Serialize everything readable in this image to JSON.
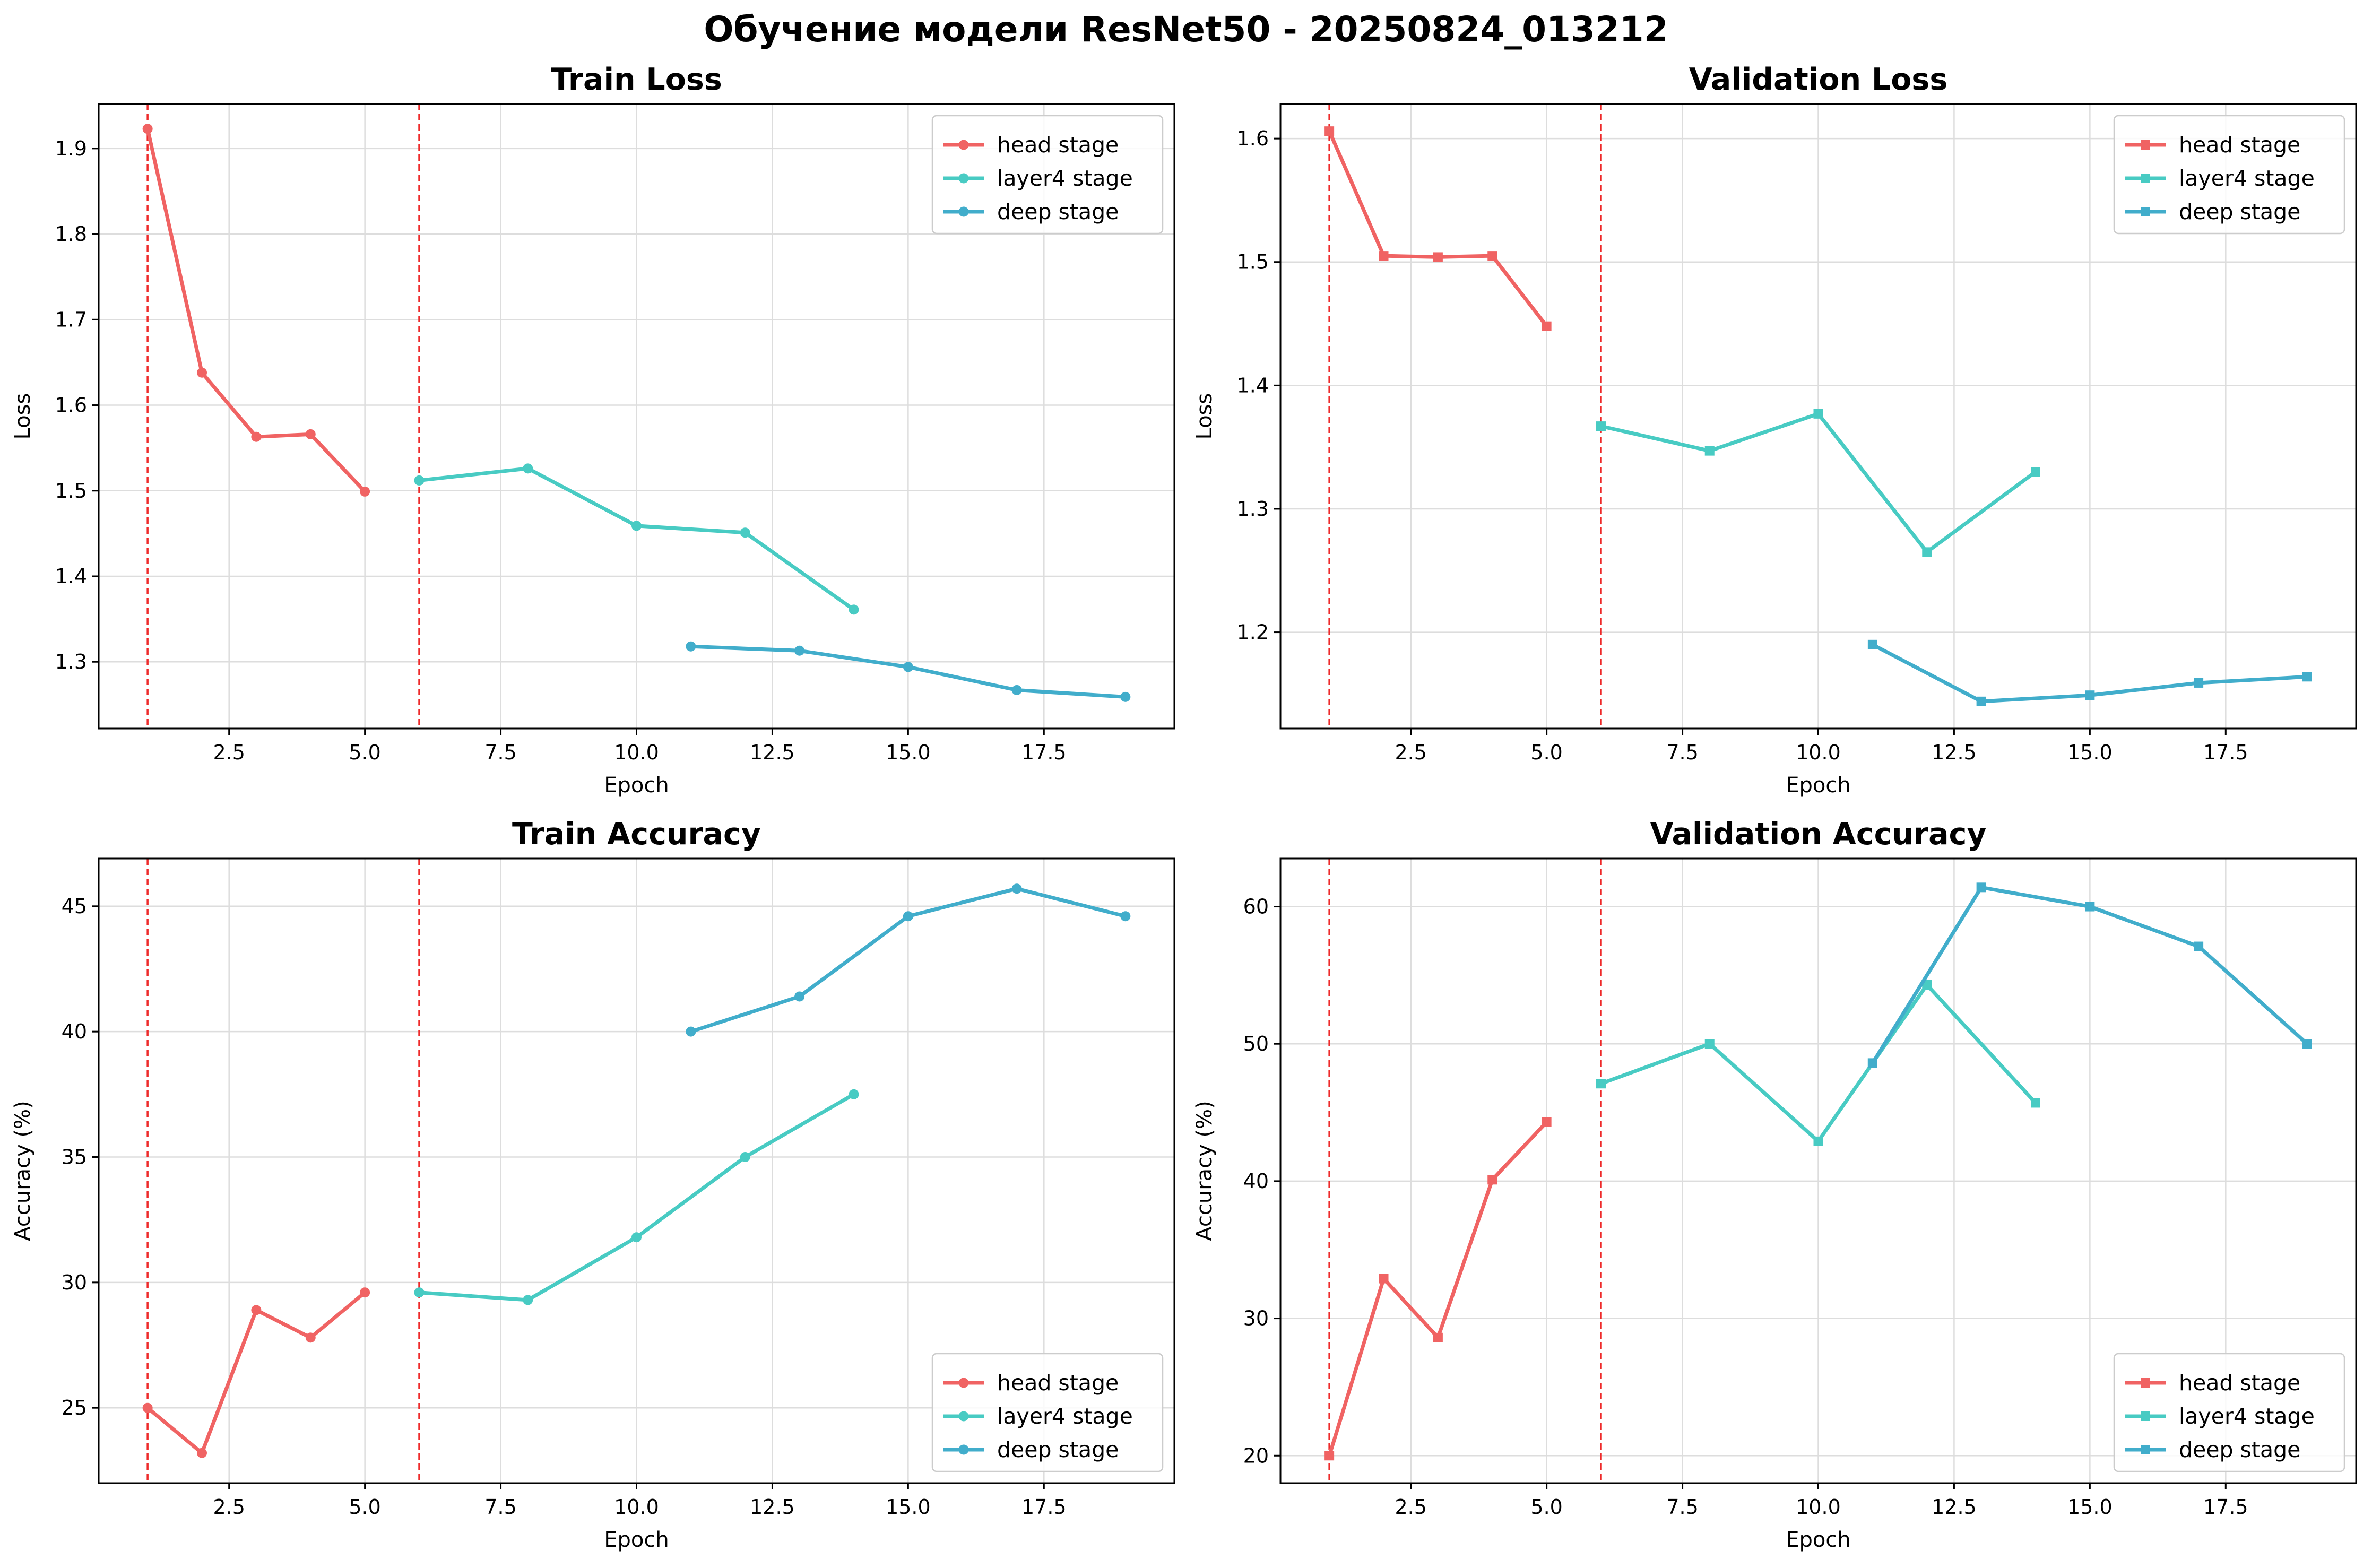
{
  "figure_title": "Обучение модели ResNet50 - 20250824_013212",
  "colors": {
    "head": "#f06363",
    "layer4": "#48cbc3",
    "deep": "#41adcb",
    "stage_line": "#ee2a2a"
  },
  "chart_data": [
    {
      "type": "line",
      "title": "Train Loss",
      "xlabel": "Epoch",
      "ylabel": "Loss",
      "xlim": [
        0.1,
        19.9
      ],
      "ylim": [
        1.222,
        1.952
      ],
      "xticks": [
        2.5,
        5.0,
        7.5,
        10.0,
        12.5,
        15.0,
        17.5
      ],
      "xtick_labels": [
        "2.5",
        "5.0",
        "7.5",
        "10.0",
        "12.5",
        "15.0",
        "17.5"
      ],
      "yticks": [
        1.3,
        1.4,
        1.5,
        1.6,
        1.7,
        1.8,
        1.9
      ],
      "ytick_labels": [
        "1.3",
        "1.4",
        "1.5",
        "1.6",
        "1.7",
        "1.8",
        "1.9"
      ],
      "marker": "circle",
      "legend_position": "upper right",
      "stage_boundaries": [
        1,
        6
      ],
      "grid": true,
      "series": [
        {
          "name": "head stage",
          "color_key": "head",
          "x": [
            1,
            2,
            3,
            4,
            5
          ],
          "y": [
            1.923,
            1.638,
            1.563,
            1.566,
            1.499
          ]
        },
        {
          "name": "layer4 stage",
          "color_key": "layer4",
          "x": [
            6,
            8,
            10,
            12,
            14
          ],
          "y": [
            1.512,
            1.526,
            1.459,
            1.451,
            1.361
          ]
        },
        {
          "name": "deep stage",
          "color_key": "deep",
          "x": [
            11,
            13,
            15,
            17,
            19
          ],
          "y": [
            1.318,
            1.313,
            1.294,
            1.267,
            1.259
          ]
        }
      ]
    },
    {
      "type": "line",
      "title": "Validation Loss",
      "xlabel": "Epoch",
      "ylabel": "Loss",
      "xlim": [
        0.1,
        19.9
      ],
      "ylim": [
        1.122,
        1.628
      ],
      "xticks": [
        2.5,
        5.0,
        7.5,
        10.0,
        12.5,
        15.0,
        17.5
      ],
      "xtick_labels": [
        "2.5",
        "5.0",
        "7.5",
        "10.0",
        "12.5",
        "15.0",
        "17.5"
      ],
      "yticks": [
        1.2,
        1.3,
        1.4,
        1.5,
        1.6
      ],
      "ytick_labels": [
        "1.2",
        "1.3",
        "1.4",
        "1.5",
        "1.6"
      ],
      "marker": "square",
      "legend_position": "upper right",
      "stage_boundaries": [
        1,
        6
      ],
      "grid": true,
      "series": [
        {
          "name": "head stage",
          "color_key": "head",
          "x": [
            1,
            2,
            3,
            4,
            5
          ],
          "y": [
            1.606,
            1.505,
            1.504,
            1.505,
            1.448
          ]
        },
        {
          "name": "layer4 stage",
          "color_key": "layer4",
          "x": [
            6,
            8,
            10,
            12,
            14
          ],
          "y": [
            1.367,
            1.347,
            1.377,
            1.265,
            1.33
          ]
        },
        {
          "name": "deep stage",
          "color_key": "deep",
          "x": [
            11,
            13,
            15,
            17,
            19
          ],
          "y": [
            1.19,
            1.144,
            1.149,
            1.159,
            1.164
          ]
        }
      ]
    },
    {
      "type": "line",
      "title": "Train Accuracy",
      "xlabel": "Epoch",
      "ylabel": "Accuracy (%)",
      "xlim": [
        0.1,
        19.9
      ],
      "ylim": [
        22.0,
        46.9
      ],
      "xticks": [
        2.5,
        5.0,
        7.5,
        10.0,
        12.5,
        15.0,
        17.5
      ],
      "xtick_labels": [
        "2.5",
        "5.0",
        "7.5",
        "10.0",
        "12.5",
        "15.0",
        "17.5"
      ],
      "yticks": [
        25,
        30,
        35,
        40,
        45
      ],
      "ytick_labels": [
        "25",
        "30",
        "35",
        "40",
        "45"
      ],
      "marker": "circle",
      "legend_position": "lower right",
      "stage_boundaries": [
        1,
        6
      ],
      "grid": true,
      "series": [
        {
          "name": "head stage",
          "color_key": "head",
          "x": [
            1,
            2,
            3,
            4,
            5
          ],
          "y": [
            25.0,
            23.2,
            28.9,
            27.8,
            29.6
          ]
        },
        {
          "name": "layer4 stage",
          "color_key": "layer4",
          "x": [
            6,
            8,
            10,
            12,
            14
          ],
          "y": [
            29.6,
            29.3,
            31.8,
            35.0,
            37.5
          ]
        },
        {
          "name": "deep stage",
          "color_key": "deep",
          "x": [
            11,
            13,
            15,
            17,
            19
          ],
          "y": [
            40.0,
            41.4,
            44.6,
            45.7,
            44.6
          ]
        }
      ]
    },
    {
      "type": "line",
      "title": "Validation Accuracy",
      "xlabel": "Epoch",
      "ylabel": "Accuracy (%)",
      "xlim": [
        0.1,
        19.9
      ],
      "ylim": [
        18.0,
        63.5
      ],
      "xticks": [
        2.5,
        5.0,
        7.5,
        10.0,
        12.5,
        15.0,
        17.5
      ],
      "xtick_labels": [
        "2.5",
        "5.0",
        "7.5",
        "10.0",
        "12.5",
        "15.0",
        "17.5"
      ],
      "yticks": [
        20,
        30,
        40,
        50,
        60
      ],
      "ytick_labels": [
        "20",
        "30",
        "40",
        "50",
        "60"
      ],
      "marker": "square",
      "legend_position": "lower right",
      "stage_boundaries": [
        1,
        6
      ],
      "grid": true,
      "series": [
        {
          "name": "head stage",
          "color_key": "head",
          "x": [
            1,
            2,
            3,
            4,
            5
          ],
          "y": [
            20.0,
            32.9,
            28.6,
            40.1,
            44.3
          ]
        },
        {
          "name": "layer4 stage",
          "color_key": "layer4",
          "x": [
            6,
            8,
            10,
            11,
            12,
            14
          ],
          "y": [
            47.1,
            50.0,
            42.9,
            48.6,
            54.3,
            45.7
          ]
        },
        {
          "name": "deep stage",
          "color_key": "deep",
          "x": [
            11,
            13,
            15,
            17,
            19
          ],
          "y": [
            48.6,
            61.4,
            60.0,
            57.1,
            50.0
          ]
        }
      ]
    }
  ]
}
